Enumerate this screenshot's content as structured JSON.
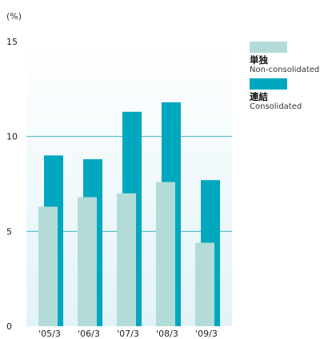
{
  "chart_data": {
    "type": "bar",
    "unit_label": "(%)",
    "categories": [
      "'05/3",
      "'06/3",
      "'07/3",
      "'08/3",
      "'09/3"
    ],
    "series": [
      {
        "name": "単独",
        "name_en": "Non-consolidated",
        "color": "#b3dcd8",
        "values": [
          6.3,
          6.8,
          7.0,
          7.6,
          4.4
        ]
      },
      {
        "name": "連結",
        "name_en": "Consolidated",
        "color": "#00a8bf",
        "values": [
          9.0,
          8.8,
          11.3,
          11.8,
          7.7
        ]
      }
    ],
    "ylim": [
      0,
      15
    ],
    "yticks": [
      0,
      5,
      10,
      15
    ],
    "grid": true,
    "legend_position": "right"
  }
}
